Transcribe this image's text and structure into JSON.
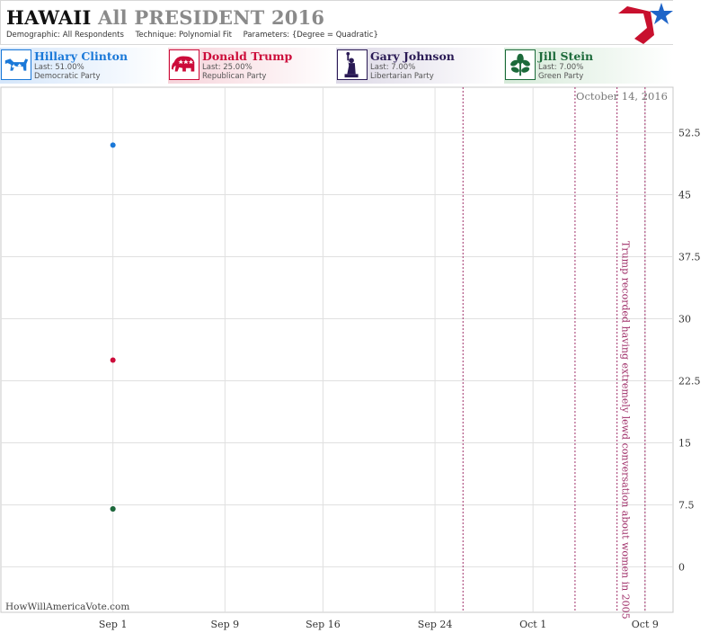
{
  "header": {
    "state": "HAWAII",
    "race": "All PRESIDENT 2016",
    "demographic_label": "Demographic:",
    "demographic": "All Respondents",
    "technique_label": "Technique:",
    "technique": "Polynomial Fit",
    "parameters_label": "Parameters:",
    "parameters": "{Degree = Quadratic}"
  },
  "candidates": [
    {
      "name": "Hillary Clinton",
      "last": "Last: 51.00%",
      "party": "Democratic Party",
      "color": "#1a78d8",
      "icon": "donkey-icon"
    },
    {
      "name": "Donald Trump",
      "last": "Last: 25.00%",
      "party": "Republican Party",
      "color": "#cc0c3a",
      "icon": "elephant-icon"
    },
    {
      "name": "Gary Johnson",
      "last": "Last: 7.00%",
      "party": "Libertarian Party",
      "color": "#2a1a55",
      "icon": "statue-of-liberty-icon"
    },
    {
      "name": "Jill Stein",
      "last": "Last: 7.00%",
      "party": "Green Party",
      "color": "#1c6a3a",
      "icon": "green-leaf-icon"
    }
  ],
  "chart_data": {
    "type": "scatter",
    "date_label": "October 14, 2016",
    "watermark": "HowWillAmericaVote.com",
    "x_ticks": [
      "Sep 1",
      "Sep 9",
      "Sep 16",
      "Sep 24",
      "Oct 1",
      "Oct 9"
    ],
    "x_tick_days": [
      "2016-09-01",
      "2016-09-09",
      "2016-09-16",
      "2016-09-24",
      "2016-10-01",
      "2016-10-09"
    ],
    "xlim": [
      "2016-08-24",
      "2016-10-11"
    ],
    "y_ticks": [
      "52.5",
      "45",
      "37.5",
      "30",
      "22.5",
      "15",
      "7.5",
      "0"
    ],
    "ylim": [
      -5.5,
      58
    ],
    "grid": true,
    "series": [
      {
        "name": "Hillary Clinton",
        "color": "#1a78d8",
        "points": [
          {
            "x": "2016-09-01",
            "y": 51
          }
        ]
      },
      {
        "name": "Donald Trump",
        "color": "#cc0c3a",
        "points": [
          {
            "x": "2016-09-01",
            "y": 25
          }
        ]
      },
      {
        "name": "Gary Johnson",
        "color": "#2a1a55",
        "points": [
          {
            "x": "2016-09-01",
            "y": 7
          }
        ]
      },
      {
        "name": "Jill Stein",
        "color": "#1c6a3a",
        "points": [
          {
            "x": "2016-09-01",
            "y": 7
          }
        ]
      }
    ],
    "event_lines": [
      {
        "x": "2016-09-26",
        "color": "#a0306a",
        "label": ""
      },
      {
        "x": "2016-10-04",
        "color": "#a0306a",
        "label": ""
      },
      {
        "x": "2016-10-07",
        "color": "#a0306a",
        "label": "Trump recorded having extremely lewd conversation about women in 2005"
      },
      {
        "x": "2016-10-09",
        "color": "#a0306a",
        "label": ""
      }
    ]
  }
}
